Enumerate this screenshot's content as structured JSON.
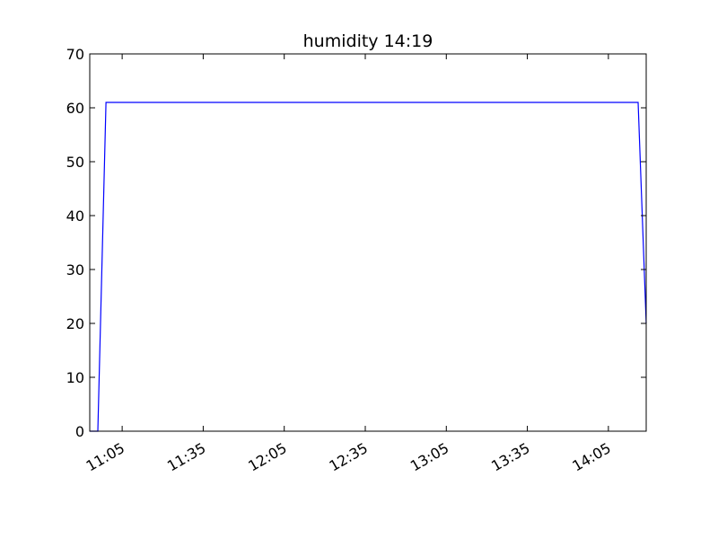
{
  "chart_data": {
    "type": "line",
    "title": "humidity  14:19",
    "xlabel": "",
    "ylabel": "",
    "x_unit": "time of day (HH:MM)",
    "xlim": [
      "10:53",
      "14:19"
    ],
    "ylim": [
      0,
      70
    ],
    "x_ticks": [
      "11:05",
      "11:35",
      "12:05",
      "12:35",
      "13:05",
      "13:35",
      "14:05"
    ],
    "y_ticks": [
      0,
      10,
      20,
      30,
      40,
      50,
      60,
      70
    ],
    "grid": false,
    "legend": "none",
    "series": [
      {
        "color": "#0000ff",
        "x": [
          "10:53",
          "10:56",
          "10:59",
          "14:16",
          "14:19"
        ],
        "y": [
          0,
          0,
          61,
          61,
          20
        ]
      }
    ]
  }
}
